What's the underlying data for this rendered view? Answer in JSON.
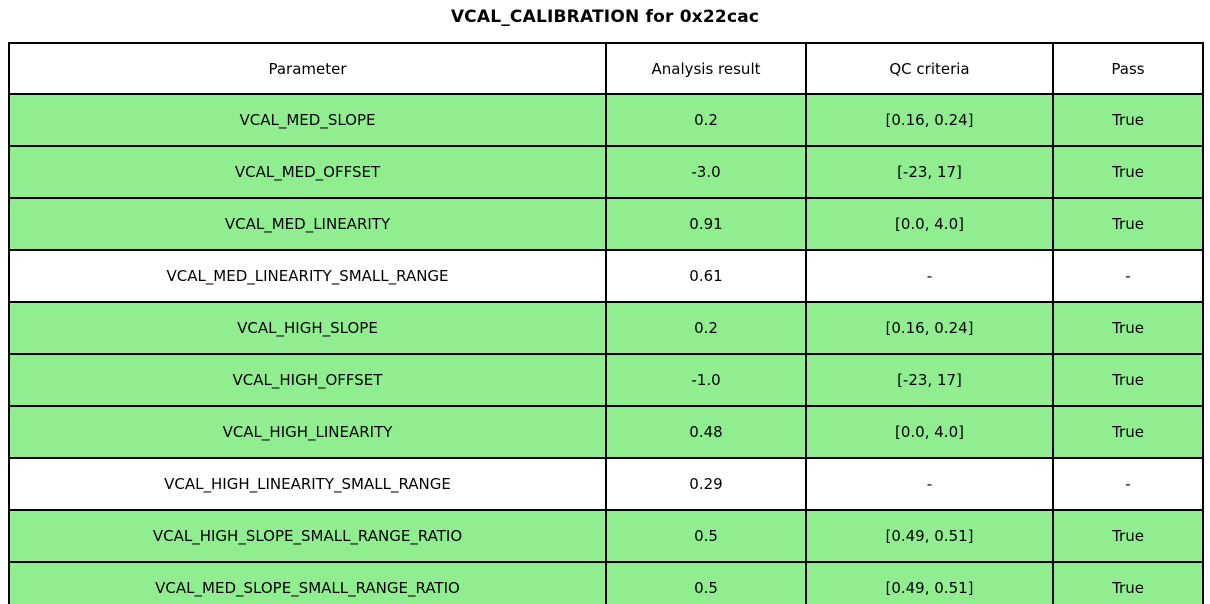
{
  "title": "VCAL_CALIBRATION for 0x22cac",
  "colors": {
    "row_pass": "#90ee90",
    "row_neutral": "#ffffff",
    "border": "#000000",
    "header_bg": "#ffffff"
  },
  "chart_data": {
    "type": "table",
    "title": "VCAL_CALIBRATION for 0x22cac",
    "columns": [
      "Parameter",
      "Analysis result",
      "QC criteria",
      "Pass"
    ],
    "rows": [
      {
        "parameter": "VCAL_MED_SLOPE",
        "analysis_result": "0.2",
        "qc_criteria": "[0.16, 0.24]",
        "pass": "True",
        "highlight": true
      },
      {
        "parameter": "VCAL_MED_OFFSET",
        "analysis_result": "-3.0",
        "qc_criteria": "[-23, 17]",
        "pass": "True",
        "highlight": true
      },
      {
        "parameter": "VCAL_MED_LINEARITY",
        "analysis_result": "0.91",
        "qc_criteria": "[0.0, 4.0]",
        "pass": "True",
        "highlight": true
      },
      {
        "parameter": "VCAL_MED_LINEARITY_SMALL_RANGE",
        "analysis_result": "0.61",
        "qc_criteria": "-",
        "pass": "-",
        "highlight": false
      },
      {
        "parameter": "VCAL_HIGH_SLOPE",
        "analysis_result": "0.2",
        "qc_criteria": "[0.16, 0.24]",
        "pass": "True",
        "highlight": true
      },
      {
        "parameter": "VCAL_HIGH_OFFSET",
        "analysis_result": "-1.0",
        "qc_criteria": "[-23, 17]",
        "pass": "True",
        "highlight": true
      },
      {
        "parameter": "VCAL_HIGH_LINEARITY",
        "analysis_result": "0.48",
        "qc_criteria": "[0.0, 4.0]",
        "pass": "True",
        "highlight": true
      },
      {
        "parameter": "VCAL_HIGH_LINEARITY_SMALL_RANGE",
        "analysis_result": "0.29",
        "qc_criteria": "-",
        "pass": "-",
        "highlight": false
      },
      {
        "parameter": "VCAL_HIGH_SLOPE_SMALL_RANGE_RATIO",
        "analysis_result": "0.5",
        "qc_criteria": "[0.49, 0.51]",
        "pass": "True",
        "highlight": true
      },
      {
        "parameter": "VCAL_MED_SLOPE_SMALL_RANGE_RATIO",
        "analysis_result": "0.5",
        "qc_criteria": "[0.49, 0.51]",
        "pass": "True",
        "highlight": true
      }
    ]
  }
}
